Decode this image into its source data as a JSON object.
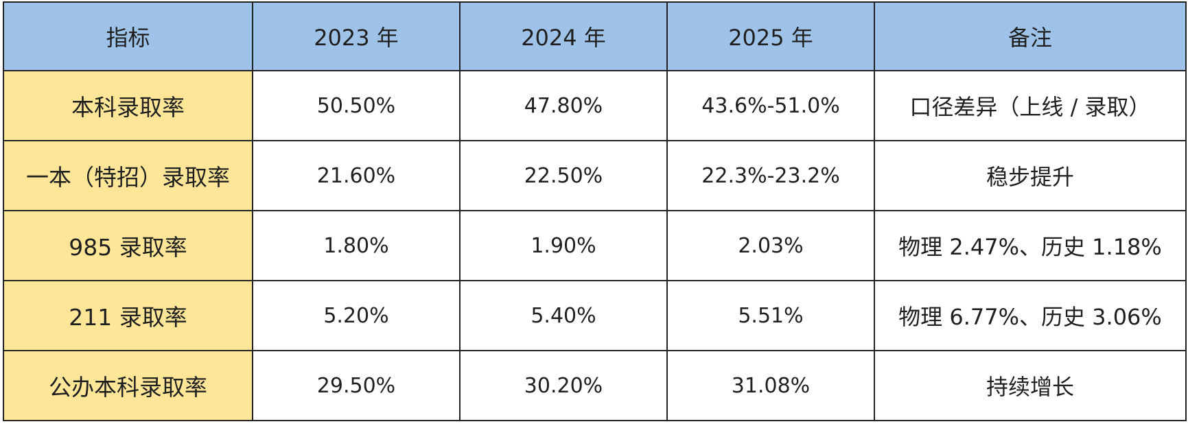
{
  "table": {
    "headers": [
      "指标",
      "2023 年",
      "2024 年",
      "2025 年",
      "备注"
    ],
    "rows": [
      {
        "label": "本科录取率",
        "y2023": "50.50%",
        "y2024": "47.80%",
        "y2025": "43.6%-51.0%",
        "note": "口径差异（上线 / 录取）"
      },
      {
        "label": "一本（特招）录取率",
        "y2023": "21.60%",
        "y2024": "22.50%",
        "y2025": "22.3%-23.2%",
        "note": "稳步提升"
      },
      {
        "label": "985 录取率",
        "y2023": "1.80%",
        "y2024": "1.90%",
        "y2025": "2.03%",
        "note": "物理 2.47%、历史 1.18%"
      },
      {
        "label": "211 录取率",
        "y2023": "5.20%",
        "y2024": "5.40%",
        "y2025": "5.51%",
        "note": "物理 6.77%、历史 3.06%"
      },
      {
        "label": "公办本科录取率",
        "y2023": "29.50%",
        "y2024": "30.20%",
        "y2025": "31.08%",
        "note": "持续增长"
      }
    ]
  },
  "colors": {
    "header_bg": "#9fc3e8",
    "label_bg": "#fee698",
    "border": "#222222"
  }
}
